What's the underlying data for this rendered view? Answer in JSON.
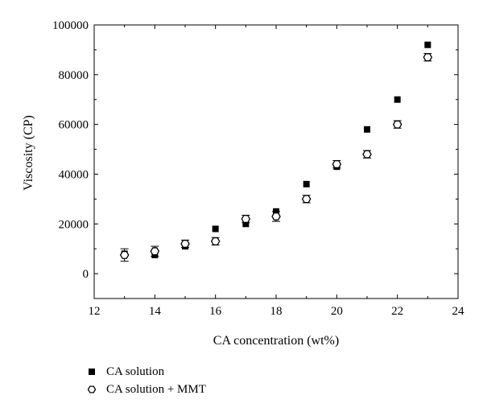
{
  "chart_data": {
    "type": "scatter",
    "title": "",
    "xlabel": "CA concentration (wt%)",
    "ylabel": "Viscosity (CP)",
    "xlim": [
      12,
      24
    ],
    "ylim": [
      -10000,
      100000
    ],
    "x_ticks": [
      "12",
      "14",
      "16",
      "18",
      "20",
      "22",
      "24"
    ],
    "y_ticks": [
      "0",
      "20000",
      "40000",
      "60000",
      "80000",
      "100000"
    ],
    "grid": false,
    "legend_placement": "bottom-left, below plot",
    "series": [
      {
        "name": "CA solution",
        "marker": "filled-square",
        "color": "#000000",
        "points": [
          {
            "x": 13,
            "y": 8000
          },
          {
            "x": 14,
            "y": 7500
          },
          {
            "x": 15,
            "y": 11000
          },
          {
            "x": 16,
            "y": 18000
          },
          {
            "x": 17,
            "y": 20000
          },
          {
            "x": 18,
            "y": 25000
          },
          {
            "x": 19,
            "y": 36000
          },
          {
            "x": 20,
            "y": 43000
          },
          {
            "x": 21,
            "y": 58000
          },
          {
            "x": 22,
            "y": 70000
          },
          {
            "x": 23,
            "y": 92000
          }
        ]
      },
      {
        "name": "CA solution + MMT",
        "marker": "open-hexagon",
        "color": "#000000",
        "points": [
          {
            "x": 13,
            "y": 7500,
            "err": 2500
          },
          {
            "x": 14,
            "y": 9000,
            "err": 2000
          },
          {
            "x": 15,
            "y": 12000,
            "err": 1500
          },
          {
            "x": 16,
            "y": 13000,
            "err": 1500
          },
          {
            "x": 17,
            "y": 22000,
            "err": 1500
          },
          {
            "x": 18,
            "y": 23000,
            "err": 2000
          },
          {
            "x": 19,
            "y": 30000,
            "err": 1500
          },
          {
            "x": 20,
            "y": 44000,
            "err": 1500
          },
          {
            "x": 21,
            "y": 48000,
            "err": 1500
          },
          {
            "x": 22,
            "y": 60000,
            "err": 1500
          },
          {
            "x": 23,
            "y": 87000,
            "err": 1500
          }
        ]
      }
    ]
  }
}
